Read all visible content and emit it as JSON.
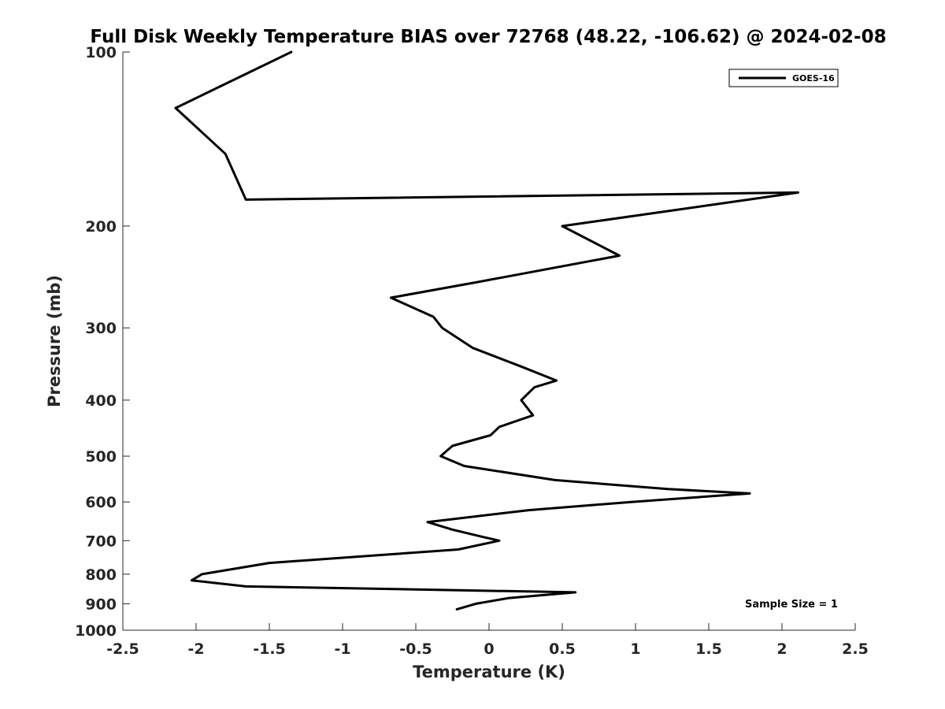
{
  "chart_data": {
    "type": "line",
    "title": "Full Disk Weekly Temperature BIAS over 72768 (48.22, -106.62) @ 2024-02-08",
    "xlabel": "Temperature (K)",
    "ylabel": "Pressure (mb)",
    "xlim": [
      -2.5,
      2.5
    ],
    "ylim": [
      100,
      1000
    ],
    "y_scale": "log",
    "y_reversed": true,
    "xticks": [
      -2.5,
      -2,
      -1.5,
      -1,
      -0.5,
      0,
      0.5,
      1,
      1.5,
      2,
      2.5
    ],
    "xtick_labels": [
      "-2.5",
      "-2",
      "-1.5",
      "-1",
      "-0.5",
      "0",
      "0.5",
      "1",
      "1.5",
      "2",
      "2.5"
    ],
    "yticks": [
      100,
      200,
      300,
      400,
      500,
      600,
      700,
      800,
      900,
      1000
    ],
    "ytick_labels": [
      "100",
      "200",
      "300",
      "400",
      "500",
      "600",
      "700",
      "800",
      "900",
      "1000"
    ],
    "grid": false,
    "legend": "top-right",
    "annotation": "Sample Size = 1",
    "series": [
      {
        "name": "GOES-16",
        "color": "#000000",
        "points": [
          {
            "x": -1.35,
            "y": 100
          },
          {
            "x": -2.14,
            "y": 125
          },
          {
            "x": -1.8,
            "y": 150
          },
          {
            "x": -1.66,
            "y": 180
          },
          {
            "x": 2.11,
            "y": 175
          },
          {
            "x": 0.5,
            "y": 200
          },
          {
            "x": 0.89,
            "y": 225
          },
          {
            "x": -0.08,
            "y": 250
          },
          {
            "x": -0.67,
            "y": 266
          },
          {
            "x": -0.38,
            "y": 287
          },
          {
            "x": -0.32,
            "y": 300
          },
          {
            "x": -0.11,
            "y": 325
          },
          {
            "x": 0.22,
            "y": 350
          },
          {
            "x": 0.46,
            "y": 370
          },
          {
            "x": 0.31,
            "y": 380
          },
          {
            "x": 0.22,
            "y": 400
          },
          {
            "x": 0.3,
            "y": 425
          },
          {
            "x": 0.07,
            "y": 445
          },
          {
            "x": 0.01,
            "y": 460
          },
          {
            "x": -0.25,
            "y": 480
          },
          {
            "x": -0.33,
            "y": 500
          },
          {
            "x": -0.17,
            "y": 520
          },
          {
            "x": 0.45,
            "y": 550
          },
          {
            "x": 1.22,
            "y": 570
          },
          {
            "x": 1.78,
            "y": 580
          },
          {
            "x": 0.97,
            "y": 600
          },
          {
            "x": 0.27,
            "y": 620
          },
          {
            "x": -0.42,
            "y": 650
          },
          {
            "x": -0.25,
            "y": 670
          },
          {
            "x": -0.04,
            "y": 690
          },
          {
            "x": 0.07,
            "y": 700
          },
          {
            "x": -0.21,
            "y": 725
          },
          {
            "x": -0.7,
            "y": 740
          },
          {
            "x": -1.5,
            "y": 765
          },
          {
            "x": -1.96,
            "y": 800
          },
          {
            "x": -2.03,
            "y": 820
          },
          {
            "x": -1.66,
            "y": 840
          },
          {
            "x": 0.59,
            "y": 860
          },
          {
            "x": 0.13,
            "y": 880
          },
          {
            "x": -0.09,
            "y": 900
          },
          {
            "x": -0.22,
            "y": 920
          }
        ]
      }
    ]
  }
}
